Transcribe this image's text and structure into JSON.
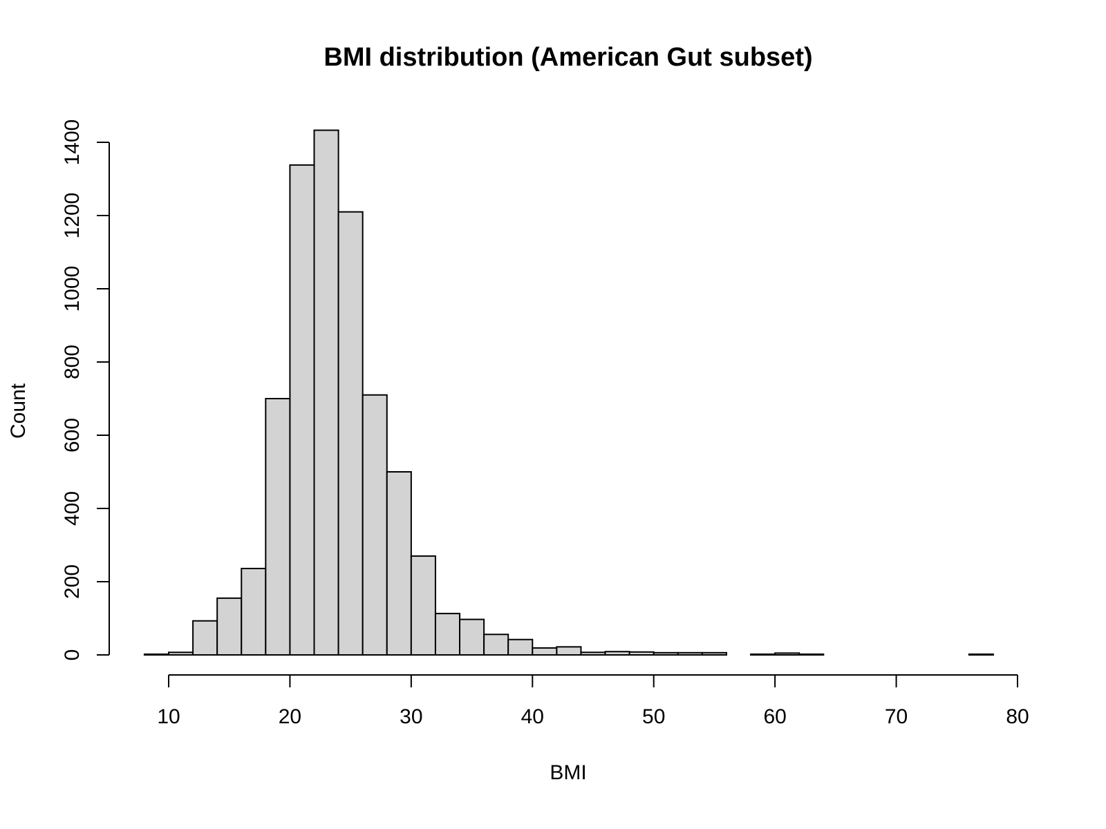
{
  "chart_data": {
    "type": "bar",
    "title": "BMI distribution (American Gut subset)",
    "xlabel": "BMI",
    "ylabel": "Count",
    "bin_width": 2,
    "bin_start": 8,
    "xlim": [
      8,
      78
    ],
    "ylim": [
      0,
      1450
    ],
    "x_ticks": [
      10,
      20,
      30,
      40,
      50,
      60,
      70,
      80
    ],
    "y_ticks": [
      0,
      200,
      400,
      600,
      800,
      1000,
      1200,
      1400
    ],
    "counts": [
      2,
      7,
      93,
      155,
      236,
      700,
      1338,
      1433,
      1210,
      710,
      500,
      270,
      113,
      97,
      56,
      42,
      19,
      22,
      7,
      9,
      8,
      6,
      6,
      6,
      0,
      2,
      5,
      2,
      0,
      0,
      0,
      0,
      0,
      0,
      2
    ],
    "grid": false,
    "legend": "none"
  }
}
